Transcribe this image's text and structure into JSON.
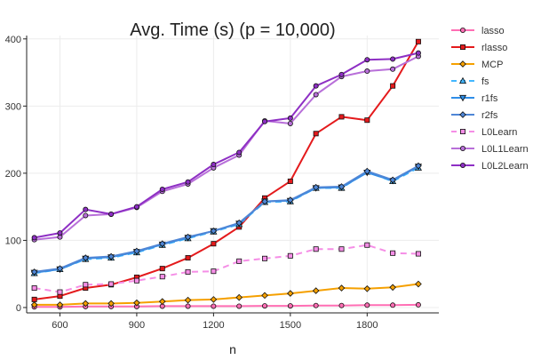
{
  "chart_data": {
    "type": "line",
    "title": "Avg. Time (s) (p = 10,000)",
    "xlabel": "n",
    "ylabel": "",
    "xlim": [
      470,
      2080
    ],
    "ylim": [
      -8,
      405
    ],
    "xticks": [
      600,
      900,
      1200,
      1500,
      1800
    ],
    "yticks": [
      0,
      100,
      200,
      300,
      400
    ],
    "grid": true,
    "legend_position": "right",
    "x": [
      500,
      600,
      700,
      800,
      900,
      1000,
      1100,
      1200,
      1300,
      1400,
      1500,
      1600,
      1700,
      1800,
      1900,
      2000
    ],
    "series": [
      {
        "name": "lasso",
        "color": "#ff6eb4",
        "marker": "circle",
        "dash": "solid",
        "values": [
          1,
          1,
          1.5,
          1.5,
          1.5,
          2,
          2,
          2,
          2,
          2.5,
          2.5,
          3,
          3,
          3.5,
          3.5,
          4
        ]
      },
      {
        "name": "rlasso",
        "color": "#e41a1c",
        "marker": "square",
        "dash": "solid",
        "values": [
          12,
          17,
          29,
          34,
          45,
          58,
          74,
          95,
          120,
          163,
          188,
          259,
          284,
          279,
          330,
          396
        ]
      },
      {
        "name": "MCP",
        "color": "#f5a000",
        "marker": "diamond",
        "dash": "solid",
        "values": [
          4,
          4,
          6,
          6,
          7,
          9,
          11,
          12,
          15,
          18,
          21,
          25,
          29,
          28,
          30,
          35
        ]
      },
      {
        "name": "fs",
        "color": "#43b7ff",
        "marker": "triangle-up",
        "dash": "dash",
        "values": [
          51,
          57,
          72,
          74,
          82,
          93,
          103,
          113,
          124,
          157,
          158,
          178,
          178,
          202,
          188,
          208
        ]
      },
      {
        "name": "r1fs",
        "color": "#2f8ee8",
        "marker": "triangle-down",
        "dash": "solid",
        "values": [
          52,
          57,
          73,
          75,
          83,
          94,
          104,
          114,
          125,
          158,
          159,
          178,
          179,
          201,
          189,
          210
        ]
      },
      {
        "name": "r2fs",
        "color": "#4f86d6",
        "marker": "diamond",
        "dash": "solid",
        "values": [
          53,
          58,
          74,
          76,
          84,
          95,
          105,
          114,
          126,
          158,
          160,
          179,
          180,
          203,
          190,
          211
        ]
      },
      {
        "name": "L0Learn",
        "color": "#f58ee6",
        "marker": "square",
        "dash": "dash",
        "values": [
          29,
          23,
          34,
          35,
          40,
          46,
          53,
          54,
          69,
          73,
          77,
          87,
          87,
          93,
          81,
          80
        ]
      },
      {
        "name": "L0L1Learn",
        "color": "#b86fd9",
        "marker": "circle",
        "dash": "solid",
        "values": [
          101,
          105,
          137,
          139,
          149,
          173,
          184,
          208,
          227,
          278,
          274,
          317,
          344,
          352,
          355,
          374
        ]
      },
      {
        "name": "L0L2Learn",
        "color": "#8e2fc4",
        "marker": "circle",
        "dash": "solid",
        "values": [
          104,
          111,
          146,
          139,
          150,
          176,
          187,
          213,
          231,
          277,
          282,
          330,
          347,
          369,
          370,
          379
        ]
      }
    ]
  }
}
